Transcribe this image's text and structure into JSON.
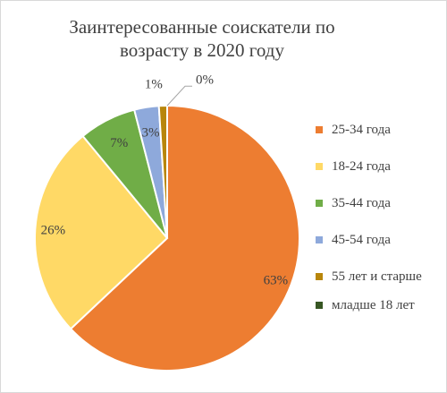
{
  "chart_data": {
    "type": "pie",
    "title_lines": [
      "Заинтересованные соискатели по",
      "возрасту в 2020 году"
    ],
    "legend_position": "right",
    "slices": [
      {
        "label": "25-34  года",
        "value": 63,
        "display": "63%",
        "color": "#ED7D31"
      },
      {
        "label": "18-24  года",
        "value": 26,
        "display": "26%",
        "color": "#FFD966"
      },
      {
        "label": "35-44  года",
        "value": 7,
        "display": "7%",
        "color": "#70AD47"
      },
      {
        "label": "45-54  года",
        "value": 3,
        "display": "3%",
        "color": "#8EA9DB"
      },
      {
        "label": "55 лет и старше",
        "value": 1,
        "display": "1%",
        "color": "#B8860B"
      },
      {
        "label": "младше 18 лет",
        "value": 0,
        "display": "0%",
        "color": "#375623"
      }
    ]
  }
}
